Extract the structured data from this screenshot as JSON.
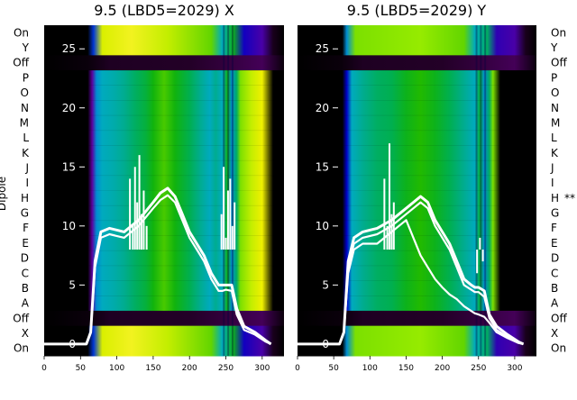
{
  "chart_data": [
    {
      "type": "heatmap",
      "title": "9.5 (LBD5=2029) X",
      "ylabel": "Dipole",
      "xlim": [
        0,
        330
      ],
      "x_ticks": [
        0,
        50,
        100,
        150,
        200,
        250,
        300
      ],
      "row_labels": [
        "On",
        "Y",
        "Off",
        "P",
        "O",
        "N",
        "M",
        "L",
        "K",
        "J",
        "I",
        "H",
        "G",
        "F",
        "E",
        "D",
        "C",
        "B",
        "A",
        "Off",
        "X",
        "On"
      ],
      "row_markers": {},
      "overlay_ylim": [
        -1,
        27
      ],
      "overlay_ticks": [
        0,
        5,
        10,
        15,
        20,
        25
      ],
      "heatmap_profile": [
        [
          0,
          0.0
        ],
        [
          60,
          0.0
        ],
        [
          66,
          0.2
        ],
        [
          72,
          0.45
        ],
        [
          80,
          0.5
        ],
        [
          95,
          0.52
        ],
        [
          110,
          0.55
        ],
        [
          125,
          0.6
        ],
        [
          140,
          0.65
        ],
        [
          150,
          0.72
        ],
        [
          165,
          0.78
        ],
        [
          180,
          0.72
        ],
        [
          200,
          0.62
        ],
        [
          215,
          0.55
        ],
        [
          228,
          0.5
        ],
        [
          236,
          0.55
        ],
        [
          245,
          0.5
        ],
        [
          252,
          0.7
        ],
        [
          258,
          0.45
        ],
        [
          265,
          0.6
        ],
        [
          270,
          0.82
        ],
        [
          285,
          0.88
        ],
        [
          300,
          0.92
        ],
        [
          315,
          0.0
        ],
        [
          330,
          0.0
        ]
      ],
      "series": [
        {
          "name": "",
          "x": [
            0,
            30,
            58,
            64,
            70,
            78,
            90,
            110,
            130,
            150,
            160,
            170,
            180,
            190,
            200,
            210,
            220,
            230,
            240,
            245,
            250,
            258,
            265,
            275,
            290,
            305,
            312
          ],
          "y": [
            0,
            0,
            0,
            1,
            7,
            9.5,
            9.8,
            9.5,
            10.5,
            12,
            12.8,
            13.2,
            12.5,
            11,
            9.5,
            8.5,
            7.5,
            6,
            5,
            5,
            5,
            5,
            3,
            1.5,
            1,
            0.3,
            0
          ]
        },
        {
          "name": "",
          "x": [
            0,
            30,
            58,
            64,
            70,
            78,
            90,
            110,
            130,
            150,
            160,
            170,
            180,
            190,
            200,
            210,
            220,
            230,
            240,
            245,
            250,
            258,
            265,
            275,
            290,
            305,
            312
          ],
          "y": [
            0,
            0,
            0,
            1,
            6.5,
            9,
            9.3,
            9,
            10,
            11.5,
            12.2,
            12.6,
            12,
            10.5,
            9,
            8,
            7,
            5.5,
            4.5,
            4.5,
            4.6,
            4.5,
            2.5,
            1.2,
            0.8,
            0.2,
            0
          ]
        }
      ],
      "spikes": [
        {
          "x": 118,
          "y": 14
        },
        {
          "x": 122,
          "y": 10
        },
        {
          "x": 125,
          "y": 15
        },
        {
          "x": 128,
          "y": 12
        },
        {
          "x": 131,
          "y": 16
        },
        {
          "x": 134,
          "y": 11
        },
        {
          "x": 137,
          "y": 13
        },
        {
          "x": 141,
          "y": 10
        },
        {
          "x": 244,
          "y": 11
        },
        {
          "x": 247,
          "y": 15
        },
        {
          "x": 250,
          "y": 9
        },
        {
          "x": 253,
          "y": 13
        },
        {
          "x": 256,
          "y": 14
        },
        {
          "x": 259,
          "y": 10
        },
        {
          "x": 262,
          "y": 12
        }
      ]
    },
    {
      "type": "heatmap",
      "title": "9.5 (LBD5=2029) Y",
      "ylabel": "",
      "xlim": [
        0,
        330
      ],
      "x_ticks": [
        0,
        50,
        100,
        150,
        200,
        250,
        300
      ],
      "row_labels": [
        "On",
        "Y",
        "Off",
        "P",
        "O",
        "N",
        "M",
        "L",
        "K",
        "J",
        "I",
        "H",
        "G",
        "F",
        "E",
        "D",
        "C",
        "B",
        "A",
        "Off",
        "X",
        "On"
      ],
      "row_markers": {
        "H": "**"
      },
      "overlay_ylim": [
        -1,
        27
      ],
      "overlay_ticks": [
        0,
        5,
        10,
        15,
        20,
        25
      ],
      "heatmap_profile": [
        [
          0,
          0.0
        ],
        [
          62,
          0.0
        ],
        [
          68,
          0.3
        ],
        [
          75,
          0.5
        ],
        [
          90,
          0.55
        ],
        [
          110,
          0.6
        ],
        [
          130,
          0.62
        ],
        [
          150,
          0.7
        ],
        [
          170,
          0.75
        ],
        [
          190,
          0.7
        ],
        [
          210,
          0.62
        ],
        [
          230,
          0.55
        ],
        [
          245,
          0.5
        ],
        [
          252,
          0.65
        ],
        [
          258,
          0.45
        ],
        [
          265,
          0.6
        ],
        [
          270,
          0.82
        ],
        [
          280,
          0.0
        ],
        [
          330,
          0.0
        ]
      ],
      "series": [
        {
          "name": "",
          "x": [
            0,
            30,
            58,
            64,
            70,
            78,
            90,
            110,
            130,
            150,
            160,
            170,
            180,
            190,
            200,
            210,
            220,
            230,
            240,
            245,
            250,
            258,
            265,
            275,
            290,
            305,
            312
          ],
          "y": [
            0,
            0,
            0,
            1,
            7,
            9,
            9.5,
            9.8,
            10.5,
            11.5,
            12,
            12.5,
            12,
            10.5,
            9.5,
            8.5,
            7,
            5.5,
            5,
            4.8,
            4.8,
            4.5,
            2.5,
            1.5,
            0.8,
            0.2,
            0
          ]
        },
        {
          "name": "",
          "x": [
            0,
            30,
            58,
            64,
            70,
            78,
            90,
            110,
            130,
            150,
            160,
            170,
            180,
            190,
            200,
            210,
            220,
            230,
            240,
            245,
            250,
            258,
            265,
            275,
            290,
            305,
            312
          ],
          "y": [
            0,
            0,
            0,
            1,
            6.5,
            8.5,
            9,
            9.3,
            10,
            11,
            11.5,
            12,
            11.5,
            10,
            9,
            8,
            6.5,
            5,
            4.6,
            4.4,
            4.4,
            4,
            2.2,
            1.2,
            0.6,
            0.1,
            0
          ]
        },
        {
          "name": "",
          "x": [
            0,
            30,
            58,
            64,
            70,
            78,
            90,
            110,
            130,
            150,
            160,
            170,
            180,
            190,
            200,
            210,
            220,
            230,
            240,
            245,
            250,
            258,
            265,
            275,
            290,
            305,
            312
          ],
          "y": [
            0,
            0,
            0,
            1,
            6,
            8,
            8.5,
            8.5,
            9.5,
            10.5,
            9,
            7.5,
            6.5,
            5.5,
            4.8,
            4.2,
            3.8,
            3.2,
            2.8,
            2.6,
            2.5,
            2.3,
            1.8,
            1,
            0.5,
            0.1,
            0
          ]
        }
      ],
      "spikes": [
        {
          "x": 120,
          "y": 14
        },
        {
          "x": 124,
          "y": 10
        },
        {
          "x": 127,
          "y": 17
        },
        {
          "x": 130,
          "y": 11
        },
        {
          "x": 133,
          "y": 12
        },
        {
          "x": 244,
          "y": 8
        },
        {
          "x": 248,
          "y": 6
        },
        {
          "x": 252,
          "y": 9
        },
        {
          "x": 256,
          "y": 7
        },
        {
          "x": 260,
          "y": 8
        }
      ]
    }
  ]
}
